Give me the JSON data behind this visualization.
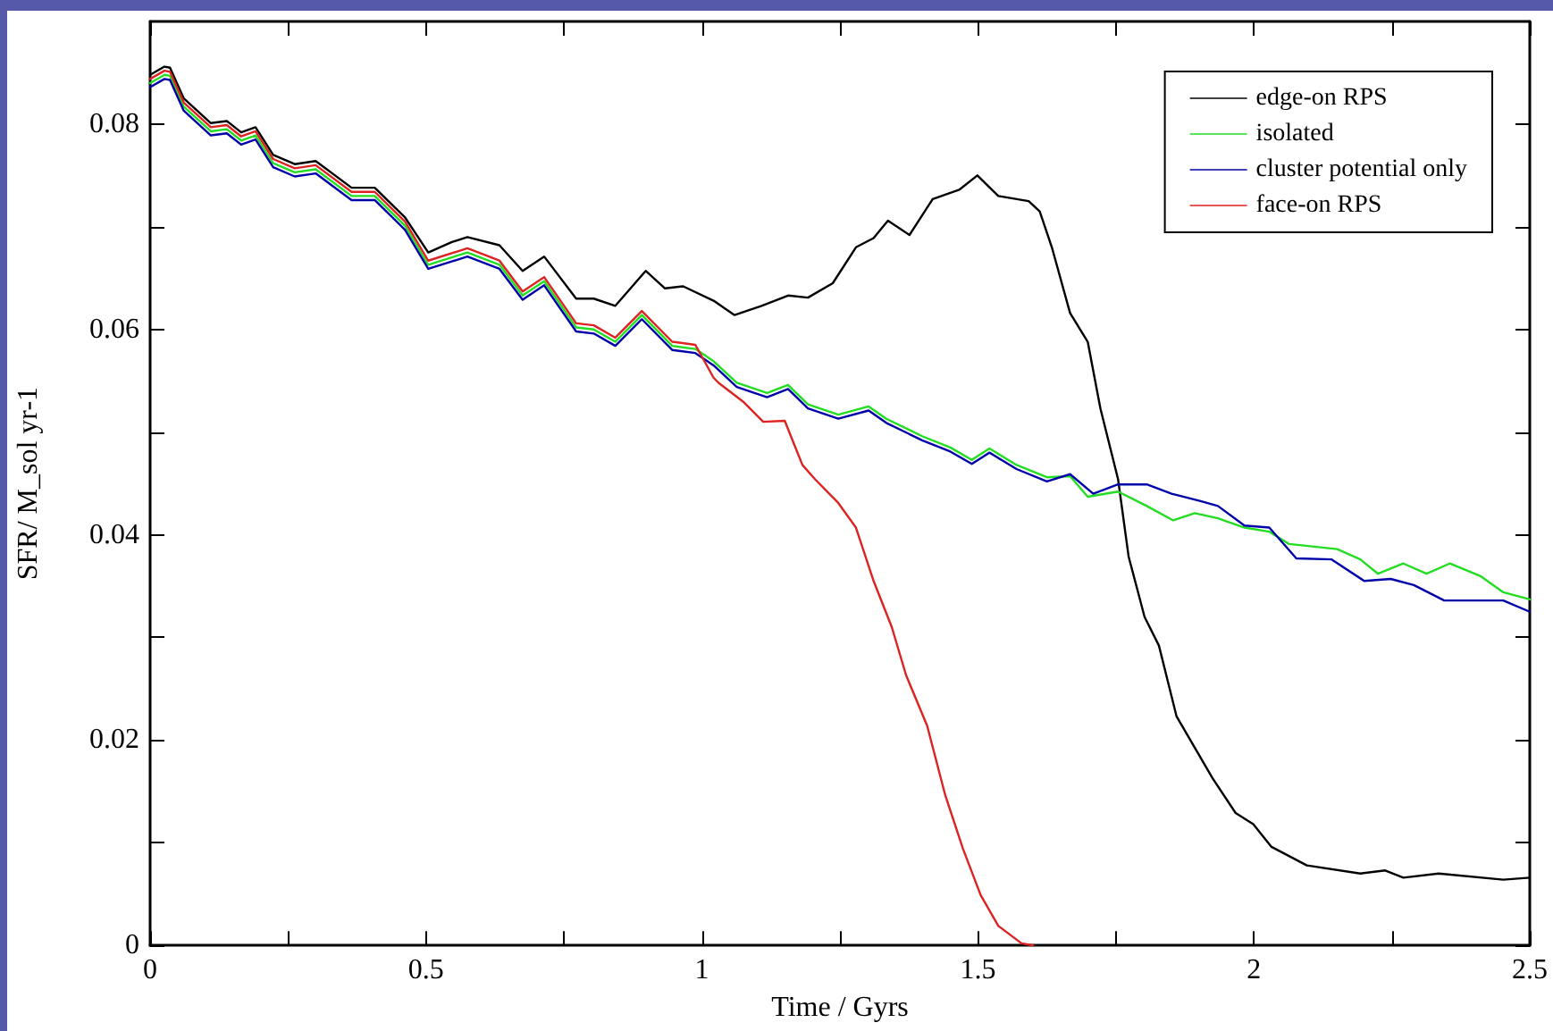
{
  "chart_data": {
    "type": "line",
    "xlabel": "Time / Gyrs",
    "ylabel": "SFR/ M_sol yr-1",
    "xlim": [
      0,
      2.5
    ],
    "ylim": [
      0,
      0.09
    ],
    "xticks": [
      0,
      {
        "value": 0.25,
        "label": null
      },
      0.5,
      {
        "value": 0.75,
        "label": null
      },
      1,
      {
        "value": 1.25,
        "label": null
      },
      1.5,
      {
        "value": 1.75,
        "label": null
      },
      2,
      {
        "value": 2.25,
        "label": null
      },
      2.5
    ],
    "yticks": [
      0,
      {
        "value": 0.01,
        "label": null
      },
      0.02,
      {
        "value": 0.03,
        "label": null
      },
      0.04,
      {
        "value": 0.05,
        "label": null
      },
      0.06,
      {
        "value": 0.07,
        "label": null
      },
      0.08
    ],
    "grid": false,
    "legend": "top right",
    "marker": "none",
    "line_style": "solid",
    "series": [
      {
        "name": "edge-on RPS",
        "color": "#000000",
        "x": [
          0,
          0.026,
          0.036,
          0.061,
          0.11,
          0.139,
          0.165,
          0.191,
          0.223,
          0.262,
          0.3,
          0.365,
          0.407,
          0.462,
          0.504,
          0.546,
          0.575,
          0.633,
          0.675,
          0.714,
          0.772,
          0.804,
          0.843,
          0.898,
          0.933,
          0.966,
          1.021,
          1.059,
          1.108,
          1.156,
          1.192,
          1.237,
          1.279,
          1.311,
          1.337,
          1.376,
          1.418,
          1.466,
          1.499,
          1.537,
          1.592,
          1.612,
          1.634,
          1.667,
          1.699,
          1.722,
          1.754,
          1.773,
          1.802,
          1.828,
          1.86,
          1.925,
          1.967,
          1.999,
          2.032,
          2.096,
          2.193,
          2.238,
          2.271,
          2.335,
          2.452,
          2.5
        ],
        "values": [
          0.0848,
          0.0856,
          0.0855,
          0.0825,
          0.0801,
          0.0803,
          0.0792,
          0.0797,
          0.077,
          0.0761,
          0.0764,
          0.0738,
          0.0738,
          0.0709,
          0.0675,
          0.0685,
          0.069,
          0.0682,
          0.0657,
          0.0671,
          0.063,
          0.063,
          0.0623,
          0.0657,
          0.064,
          0.0642,
          0.0628,
          0.0614,
          0.0623,
          0.0633,
          0.0631,
          0.0645,
          0.068,
          0.0689,
          0.0706,
          0.0692,
          0.0727,
          0.0736,
          0.075,
          0.073,
          0.0725,
          0.0715,
          0.068,
          0.0616,
          0.0588,
          0.0523,
          0.0454,
          0.0379,
          0.032,
          0.0292,
          0.0223,
          0.0163,
          0.0129,
          0.0118,
          0.0096,
          0.0078,
          0.007,
          0.0073,
          0.0066,
          0.007,
          0.0064,
          0.0066
        ]
      },
      {
        "name": "isolated",
        "color": "#22dd22",
        "x": [
          0,
          0.026,
          0.036,
          0.061,
          0.11,
          0.139,
          0.165,
          0.191,
          0.223,
          0.262,
          0.3,
          0.365,
          0.407,
          0.462,
          0.504,
          0.575,
          0.633,
          0.675,
          0.714,
          0.772,
          0.804,
          0.843,
          0.891,
          0.946,
          0.988,
          1.021,
          1.063,
          1.118,
          1.156,
          1.192,
          1.247,
          1.302,
          1.334,
          1.399,
          1.45,
          1.489,
          1.521,
          1.57,
          1.625,
          1.667,
          1.699,
          1.754,
          1.806,
          1.854,
          1.893,
          1.935,
          1.983,
          2.028,
          2.064,
          2.151,
          2.193,
          2.225,
          2.271,
          2.313,
          2.355,
          2.41,
          2.452,
          2.5
        ],
        "values": [
          0.084,
          0.0848,
          0.0847,
          0.0817,
          0.0793,
          0.0795,
          0.0784,
          0.0789,
          0.0762,
          0.0753,
          0.0756,
          0.073,
          0.073,
          0.0701,
          0.0663,
          0.0675,
          0.0663,
          0.0633,
          0.0647,
          0.0602,
          0.06,
          0.0588,
          0.0614,
          0.0584,
          0.0581,
          0.0569,
          0.0548,
          0.0538,
          0.0546,
          0.0527,
          0.0517,
          0.0525,
          0.0513,
          0.0496,
          0.0485,
          0.0473,
          0.0484,
          0.0468,
          0.0456,
          0.0457,
          0.0437,
          0.0442,
          0.0428,
          0.0414,
          0.0421,
          0.0416,
          0.0407,
          0.0403,
          0.0391,
          0.0386,
          0.0376,
          0.0362,
          0.0372,
          0.0362,
          0.0372,
          0.036,
          0.0344,
          0.0337
        ]
      },
      {
        "name": "cluster potential only",
        "color": "#0000aa",
        "x": [
          0,
          0.026,
          0.036,
          0.061,
          0.11,
          0.139,
          0.165,
          0.191,
          0.223,
          0.262,
          0.3,
          0.365,
          0.407,
          0.462,
          0.504,
          0.575,
          0.633,
          0.675,
          0.714,
          0.772,
          0.804,
          0.843,
          0.891,
          0.946,
          0.988,
          1.021,
          1.063,
          1.118,
          1.156,
          1.192,
          1.247,
          1.302,
          1.334,
          1.399,
          1.45,
          1.489,
          1.521,
          1.57,
          1.625,
          1.667,
          1.709,
          1.754,
          1.806,
          1.851,
          1.902,
          1.935,
          1.983,
          2.028,
          2.077,
          2.141,
          2.2,
          2.248,
          2.29,
          2.345,
          2.452,
          2.5
        ],
        "values": [
          0.0836,
          0.0844,
          0.0843,
          0.0813,
          0.0789,
          0.0791,
          0.078,
          0.0785,
          0.0758,
          0.0749,
          0.0752,
          0.0726,
          0.0726,
          0.0697,
          0.0659,
          0.0671,
          0.0659,
          0.0629,
          0.0643,
          0.0598,
          0.0596,
          0.0584,
          0.061,
          0.058,
          0.0577,
          0.0565,
          0.0544,
          0.0534,
          0.0542,
          0.0523,
          0.0513,
          0.0521,
          0.0509,
          0.0492,
          0.0481,
          0.0469,
          0.048,
          0.0464,
          0.0452,
          0.0459,
          0.044,
          0.0449,
          0.0449,
          0.044,
          0.0433,
          0.0428,
          0.0409,
          0.0407,
          0.0377,
          0.0376,
          0.0355,
          0.0357,
          0.0351,
          0.0336,
          0.0336,
          0.0325
        ]
      },
      {
        "name": "face-on RPS",
        "color": "#dd2222",
        "x": [
          0,
          0.026,
          0.036,
          0.061,
          0.11,
          0.139,
          0.165,
          0.191,
          0.223,
          0.262,
          0.3,
          0.365,
          0.407,
          0.462,
          0.504,
          0.575,
          0.633,
          0.675,
          0.714,
          0.772,
          0.804,
          0.843,
          0.891,
          0.946,
          0.988,
          1.021,
          1.03,
          1.076,
          1.111,
          1.15,
          1.182,
          1.205,
          1.247,
          1.279,
          1.311,
          1.344,
          1.37,
          1.408,
          1.441,
          1.473,
          1.505,
          1.537,
          1.579,
          1.6
        ],
        "values": [
          0.0844,
          0.0852,
          0.0851,
          0.0821,
          0.0797,
          0.0799,
          0.0788,
          0.0793,
          0.0766,
          0.0757,
          0.076,
          0.0734,
          0.0734,
          0.0705,
          0.0667,
          0.0679,
          0.0667,
          0.0637,
          0.0651,
          0.0606,
          0.0604,
          0.0592,
          0.0618,
          0.0588,
          0.0585,
          0.0553,
          0.0548,
          0.0529,
          0.051,
          0.0511,
          0.0468,
          0.0454,
          0.0431,
          0.0407,
          0.0355,
          0.031,
          0.0263,
          0.0214,
          0.0146,
          0.0094,
          0.0049,
          0.0019,
          0.0002,
          0
        ]
      }
    ]
  }
}
